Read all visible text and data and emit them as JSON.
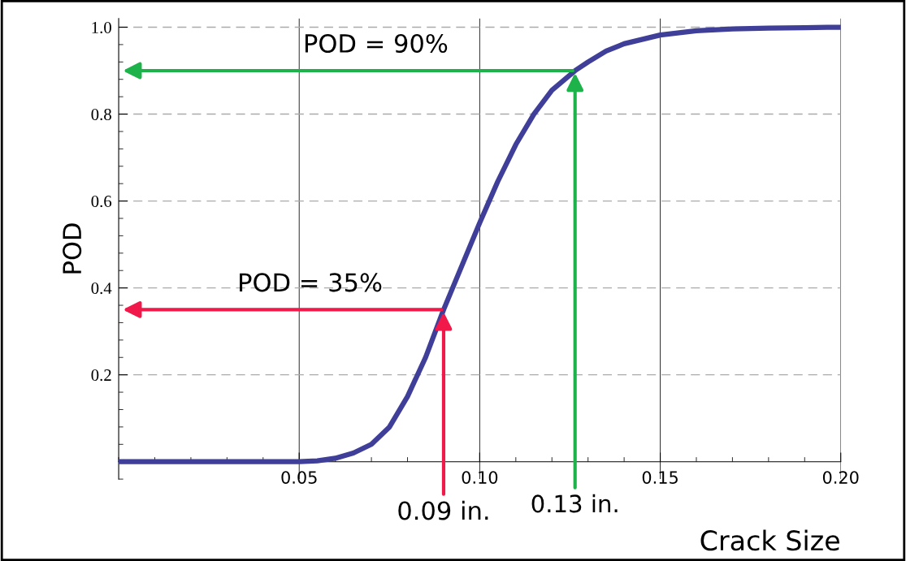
{
  "chart_data": {
    "type": "line",
    "xlabel": "Crack Size",
    "ylabel": "POD",
    "x": [
      0,
      0.02,
      0.04,
      0.05,
      0.055,
      0.06,
      0.065,
      0.07,
      0.075,
      0.08,
      0.085,
      0.09,
      0.095,
      0.1,
      0.105,
      0.11,
      0.115,
      0.12,
      0.1264,
      0.13,
      0.135,
      0.14,
      0.15,
      0.16,
      0.17,
      0.18,
      0.19,
      0.2
    ],
    "series": [
      {
        "color": "#3f3f9a",
        "values": [
          0,
          0,
          0,
          0,
          0.002,
          0.008,
          0.02,
          0.04,
          0.08,
          0.15,
          0.24,
          0.35,
          0.45,
          0.55,
          0.645,
          0.73,
          0.8,
          0.855,
          0.9,
          0.92,
          0.945,
          0.962,
          0.982,
          0.992,
          0.996,
          0.998,
          0.999,
          1.0
        ]
      }
    ],
    "xlim": [
      0,
      0.2
    ],
    "ylim": [
      -0.04,
      1.02
    ],
    "xticks": [
      0.05,
      {
        "value": 0.1,
        "label": "0.10"
      },
      0.15,
      {
        "value": 0.2,
        "label": "0.20"
      }
    ],
    "yticks": [
      0.2,
      0.4,
      0.6,
      0.8,
      {
        "value": 1.0,
        "label": "1.0"
      }
    ],
    "grid": true,
    "marker": "none",
    "line_style": "solid",
    "annotations": [
      "POD = 35%",
      {
        "text": "0.09 in.",
        "x": 0.09,
        "y": 0.35
      },
      "POD = 90%",
      {
        "text": "0.13 in.",
        "x": 0.1264,
        "y": 0.9
      }
    ]
  }
}
